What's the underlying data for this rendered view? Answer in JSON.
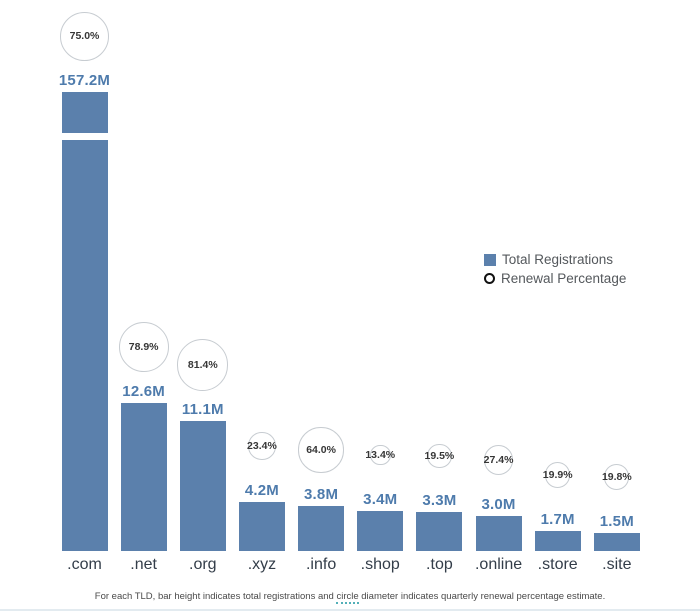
{
  "chart_data": {
    "type": "bar",
    "title": "",
    "xlabel": "",
    "ylabel": "",
    "grid": false,
    "legend_position": "middle-right",
    "categories": [
      ".com",
      ".net",
      ".org",
      ".xyz",
      ".info",
      ".shop",
      ".top",
      ".online",
      ".store",
      ".site"
    ],
    "series": [
      {
        "name": "Total Registrations",
        "unit": "M",
        "values": [
          157.2,
          12.6,
          11.1,
          4.2,
          3.8,
          3.4,
          3.3,
          3.0,
          1.7,
          1.5
        ]
      },
      {
        "name": "Renewal Percentage",
        "unit": "%",
        "values": [
          75.0,
          78.9,
          81.4,
          23.4,
          64.0,
          13.4,
          19.5,
          27.4,
          19.9,
          19.8
        ]
      }
    ],
    "tlds": [
      {
        "tld": ".com",
        "registrations": "157.2M",
        "value_m": 157.2,
        "renewal": "75.0%",
        "renewal_pct": 75.0,
        "broken_axis": true
      },
      {
        "tld": ".net",
        "registrations": "12.6M",
        "value_m": 12.6,
        "renewal": "78.9%",
        "renewal_pct": 78.9,
        "broken_axis": false
      },
      {
        "tld": ".org",
        "registrations": "11.1M",
        "value_m": 11.1,
        "renewal": "81.4%",
        "renewal_pct": 81.4,
        "broken_axis": false
      },
      {
        "tld": ".xyz",
        "registrations": "4.2M",
        "value_m": 4.2,
        "renewal": "23.4%",
        "renewal_pct": 23.4,
        "broken_axis": false
      },
      {
        "tld": ".info",
        "registrations": "3.8M",
        "value_m": 3.8,
        "renewal": "64.0%",
        "renewal_pct": 64.0,
        "broken_axis": false
      },
      {
        "tld": ".shop",
        "registrations": "3.4M",
        "value_m": 3.4,
        "renewal": "13.4%",
        "renewal_pct": 13.4,
        "broken_axis": false
      },
      {
        "tld": ".top",
        "registrations": "3.3M",
        "value_m": 3.3,
        "renewal": "19.5%",
        "renewal_pct": 19.5,
        "broken_axis": false
      },
      {
        "tld": ".online",
        "registrations": "3.0M",
        "value_m": 3.0,
        "renewal": "27.4%",
        "renewal_pct": 27.4,
        "broken_axis": false
      },
      {
        "tld": ".store",
        "registrations": "1.7M",
        "value_m": 1.7,
        "renewal": "19.9%",
        "renewal_pct": 19.9,
        "broken_axis": false
      },
      {
        "tld": ".site",
        "registrations": "1.5M",
        "value_m": 1.5,
        "renewal": "19.8%",
        "renewal_pct": 19.8,
        "broken_axis": false
      }
    ]
  },
  "legend": {
    "bar_label": "Total Registrations",
    "circle_label": "Renewal Percentage"
  },
  "caption": {
    "pre": "For each TLD, bar height indicates total registrations and ",
    "underlined": "circle",
    "post": " diameter indicates quarterly renewal percentage estimate."
  },
  "colors": {
    "bar": "#5b80ac",
    "value_label": "#4e7bac",
    "tld_label": "#333d49",
    "pct_label": "#363636",
    "circle_stroke": "#c7ccd1",
    "legend_text": "#54585c",
    "caption_text": "#4a4a4a",
    "caption_underline": "#53b0b8"
  }
}
